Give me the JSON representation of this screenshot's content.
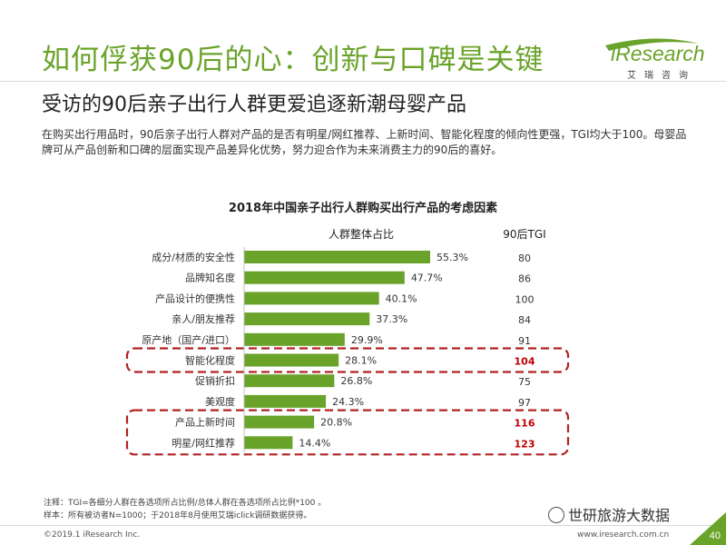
{
  "header": {
    "title": "如何俘获90后的心：创新与口碑是关键",
    "logo_text": "iResearch",
    "logo_sub": "艾瑞咨询"
  },
  "subtitle": "受访的90后亲子出行人群更爱追逐新潮母婴产品",
  "description": "在购买出行用品时，90后亲子出行人群对产品的是否有明星/网红推荐、上新时间、智能化程度的倾向性更强，TGI均大于100。母婴品牌可从产品创新和口碑的层面实现产品差异化优势，努力迎合作为未来消费主力的90后的喜好。",
  "chart_data": {
    "type": "bar",
    "orientation": "horizontal",
    "title": "2018年中国亲子出行人群购买出行产品的考虑因素",
    "series_label": "人群整体占比",
    "tgi_label": "90后TGI",
    "categories": [
      "成分/材质的安全性",
      "品牌知名度",
      "产品设计的便携性",
      "亲人/朋友推荐",
      "原产地（国产/进口）",
      "智能化程度",
      "促销折扣",
      "美观度",
      "产品上新时间",
      "明星/网红推荐"
    ],
    "values": [
      55.3,
      47.7,
      40.1,
      37.3,
      29.9,
      28.1,
      26.8,
      24.3,
      20.8,
      14.4
    ],
    "value_labels": [
      "55.3%",
      "47.7%",
      "40.1%",
      "37.3%",
      "29.9%",
      "28.1%",
      "26.8%",
      "24.3%",
      "20.8%",
      "14.4%"
    ],
    "tgi": [
      "80",
      "86",
      "100",
      "84",
      "91",
      "104",
      "75",
      "97",
      "116",
      "123"
    ],
    "highlight_indices": [
      5,
      8,
      9
    ],
    "xlim": [
      0,
      60
    ],
    "bar_color": "#6aa32a",
    "highlight_color": "#c00000",
    "box_color": "#b22222"
  },
  "footer": {
    "note": "注释：TGI=各细分人群在各选项所占比例/总体人群在各选项所占比例*100 。",
    "sample": "样本：所有被访者N=1000；于2018年8月使用艾瑞iclick调研数据获得。",
    "wechat": "世研旅游大数据",
    "copyright": "©2019.1 iResearch Inc.",
    "site": "www.iresearch.com.cn",
    "page": "40"
  }
}
